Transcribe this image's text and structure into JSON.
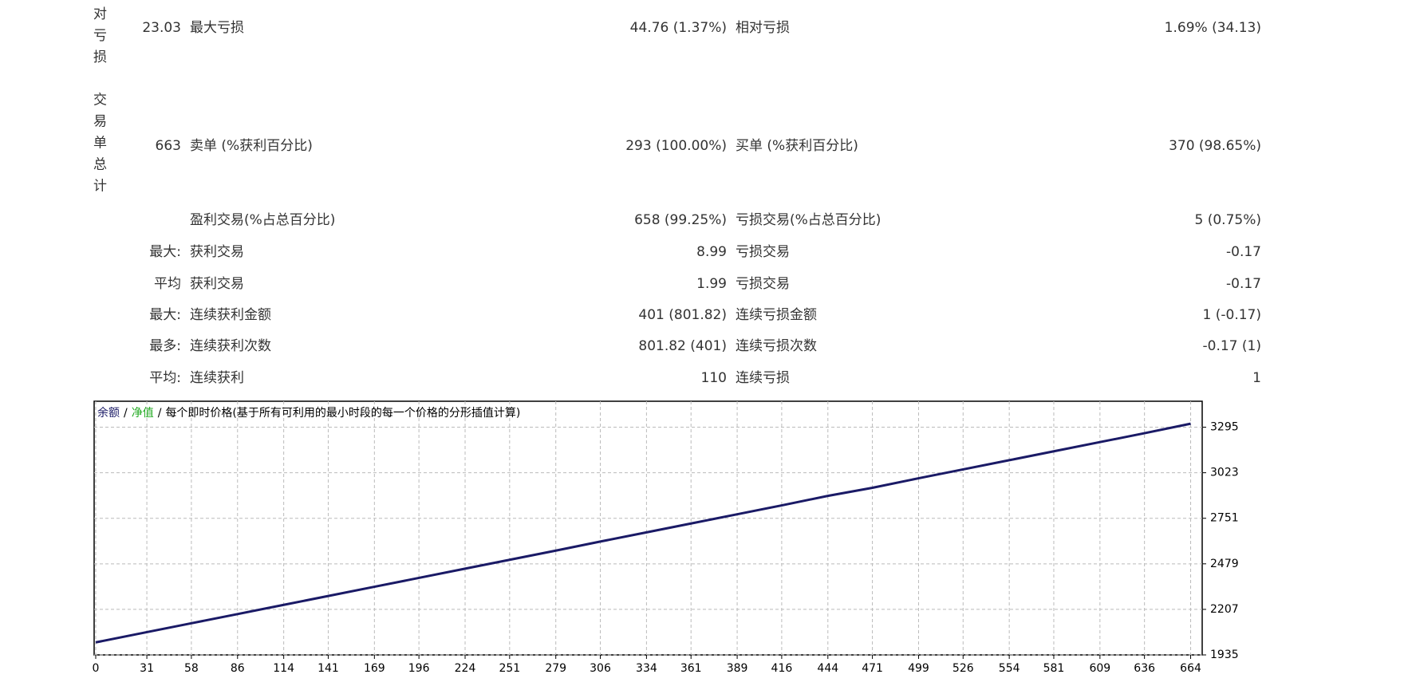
{
  "report": {
    "rows": [
      {
        "side_label": "绝对亏损",
        "value": "23.03",
        "label_1": "最大亏损",
        "value_1": "44.76 (1.37%)",
        "label_2": "相对亏损",
        "value_2": "1.69% (34.13)"
      },
      {
        "side_label": "交易单总计",
        "value": "663",
        "label_1": "卖单 (%获利百分比)",
        "value_1": "293 (100.00%)",
        "label_2": "买单 (%获利百分比)",
        "value_2": "370 (98.65%)"
      },
      {
        "label_1": "盈利交易(%占总百分比)",
        "value_1": "658 (99.25%)",
        "label_2": "亏损交易(%占总百分比)",
        "value_2": "5 (0.75%)"
      },
      {
        "prefix": "最大:",
        "label_1": "获利交易",
        "value_1": "8.99",
        "label_2": "亏损交易",
        "value_2": "-0.17"
      },
      {
        "prefix": "平均",
        "label_1": "获利交易",
        "value_1": "1.99",
        "label_2": "亏损交易",
        "value_2": "-0.17"
      },
      {
        "prefix": "最大:",
        "label_1": "连续获利金额",
        "value_1": "401 (801.82)",
        "label_2": "连续亏损金额",
        "value_2": "1 (-0.17)"
      },
      {
        "prefix": "最多:",
        "label_1": "连续获利次数",
        "value_1": "801.82 (401)",
        "label_2": "连续亏损次数",
        "value_2": "-0.17 (1)"
      },
      {
        "prefix": "平均:",
        "label_1": "连续获利",
        "value_1": "110",
        "label_2": "连续亏损",
        "value_2": "1"
      }
    ]
  },
  "chart_data": {
    "type": "line",
    "legend_separator": "/",
    "equity_label": "净值",
    "equity_color": "#22aa22",
    "title": "每个即时价格(基于所有可利用的最小时段的每一个价格的分形插值计算)",
    "x": [
      0,
      31,
      58,
      86,
      114,
      141,
      169,
      196,
      224,
      251,
      279,
      306,
      334,
      361,
      389,
      416,
      444,
      471,
      499,
      526,
      554,
      581,
      609,
      636,
      664
    ],
    "series": [
      {
        "name": "余额",
        "color": "#1a1a66",
        "values": [
          2010,
          2071,
          2124,
          2179,
          2234,
          2287,
          2342,
          2395,
          2450,
          2503,
          2558,
          2612,
          2667,
          2720,
          2775,
          2828,
          2885,
          2933,
          2990,
          3043,
          3098,
          3151,
          3206,
          3259,
          3316
        ]
      }
    ],
    "xlim": [
      0,
      671
    ],
    "ylim": [
      1935,
      3450
    ],
    "xticks": [
      0,
      31,
      58,
      86,
      114,
      141,
      169,
      196,
      224,
      251,
      279,
      306,
      334,
      361,
      389,
      416,
      444,
      471,
      499,
      526,
      554,
      581,
      609,
      636,
      664
    ],
    "yticks": [
      1935,
      2207,
      2479,
      2751,
      3023,
      3295
    ],
    "grid": true
  }
}
